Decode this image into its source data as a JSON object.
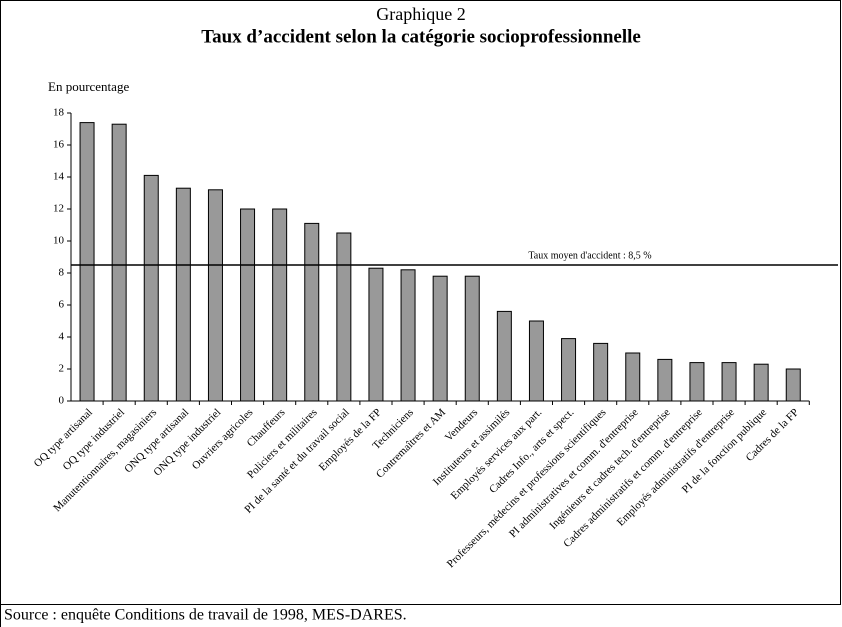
{
  "chart_data": {
    "type": "bar",
    "supertitle": "Graphique 2",
    "title": "Taux d’accident selon la catégorie socioprofessionnelle",
    "y_label": "En pourcentage",
    "categories": [
      "OQ type artisanal",
      "OQ type industriel",
      "Manutentionnaires, magasiniers",
      "ONQ type artisanal",
      "ONQ type industriel",
      "Ouvriers agricoles",
      "Chauffeurs",
      "Policiers et militaires",
      "PI de la santé et du travail social",
      "Employés de la FP",
      "Techniciens",
      "Contremaîtres et AM",
      "Vendeurs",
      "Instituteurs et assimilés",
      "Employés services aux part.",
      "Cadres Info., arts et spect.",
      "Professeurs, médecins et professions scientifiques",
      "PI administratives et comm. d'entreprise",
      "Ingénieurs et cadres tech. d'entreprise",
      "Cadres administratifs et comm. d'entreprise",
      "Employés administratifs d'entreprise",
      "PI de la fonction publique",
      "Cadres de la FP"
    ],
    "values": [
      17.4,
      17.3,
      14.1,
      13.3,
      13.2,
      12.0,
      12.0,
      11.1,
      10.5,
      8.3,
      8.2,
      7.8,
      7.8,
      5.6,
      5.0,
      3.9,
      3.6,
      3.0,
      2.6,
      2.4,
      2.4,
      2.3,
      2.0
    ],
    "color": "#999999",
    "ylim": [
      0,
      18
    ],
    "yticks": [
      0,
      2,
      4,
      6,
      8,
      10,
      12,
      14,
      16,
      18
    ],
    "reference_line": {
      "value": 8.5,
      "label": "Taux moyen d'accident : 8,5 %"
    },
    "source": "Source : enquête Conditions de travail de 1998, MES-DARES."
  }
}
